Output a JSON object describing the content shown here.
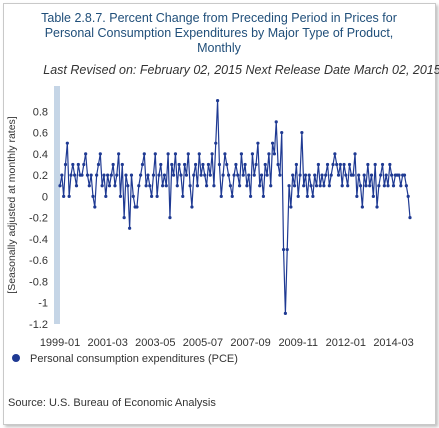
{
  "chart_data": {
    "type": "line",
    "title_lines": [
      "Table 2.8.7. Percent Change from Preceding Period in Prices for",
      "Personal Consumption Expenditures by Major Type of Product,",
      "Monthly"
    ],
    "subtitle": "Last Revised on: February 02, 2015   Next Release Date March 02, 2015",
    "ylabel": "[Seasonally adjusted at monthly rates]",
    "ylim": [
      -1.2,
      1.0
    ],
    "yticks": [
      0.8,
      0.6,
      0.4,
      0.2,
      0,
      -0.2,
      -0.4,
      -0.6,
      -0.8,
      -1,
      -1.2
    ],
    "ytick_labels": [
      "0.8",
      "0.6",
      "0.4",
      "0.2",
      "0",
      "-0.2",
      "-0.4",
      "-0.6",
      "-0.8",
      "-1",
      "-1.2"
    ],
    "x_start": "1999-01",
    "x_end": "2014-12",
    "xtick_labels": [
      "1999-01",
      "2001-03",
      "2003-05",
      "2005-07",
      "2007-09",
      "2009-11",
      "2012-01",
      "2014-03"
    ],
    "xtick_month_index": [
      0,
      26,
      52,
      78,
      104,
      130,
      156,
      182
    ],
    "grid": false,
    "legend_position": "bottom-left",
    "series": [
      {
        "name": "Personal consumption expenditures (PCE)",
        "color": "#1f3a93",
        "values": [
          0.1,
          0.2,
          0.0,
          0.3,
          0.5,
          0.0,
          0.2,
          0.3,
          0.2,
          0.1,
          0.3,
          0.2,
          0.2,
          0.3,
          0.4,
          0.2,
          0.1,
          0.2,
          0.0,
          -0.1,
          0.2,
          0.3,
          0.4,
          0.1,
          0.2,
          0.0,
          0.2,
          0.1,
          0.2,
          0.3,
          0.1,
          0.2,
          0.4,
          0.0,
          0.3,
          -0.2,
          0.2,
          0.1,
          -0.3,
          0.2,
          0.0,
          -0.1,
          -0.1,
          0.1,
          0.2,
          0.3,
          0.4,
          0.1,
          0.2,
          0.1,
          0.0,
          0.2,
          0.4,
          0.0,
          0.2,
          0.3,
          0.1,
          0.2,
          0.1,
          0.4,
          -0.2,
          0.3,
          0.2,
          0.4,
          0.1,
          0.3,
          0.2,
          0.0,
          0.3,
          0.2,
          0.4,
          0.1,
          -0.1,
          0.2,
          0.3,
          0.1,
          0.4,
          0.2,
          0.3,
          0.2,
          0.1,
          0.3,
          0.2,
          0.4,
          0.1,
          0.5,
          0.9,
          0.3,
          0.0,
          0.2,
          0.4,
          0.3,
          0.2,
          0.1,
          0.0,
          0.2,
          0.3,
          0.2,
          0.1,
          0.4,
          0.2,
          0.3,
          0.1,
          0.2,
          0.0,
          0.4,
          0.2,
          0.3,
          0.5,
          0.1,
          0.2,
          0.0,
          0.3,
          0.2,
          0.4,
          0.1,
          0.5,
          0.4,
          0.7,
          0.3,
          0.2,
          0.6,
          -0.5,
          -1.1,
          -0.5,
          0.1,
          -0.1,
          0.2,
          0.1,
          0.3,
          0.0,
          0.2,
          0.6,
          0.1,
          0.2,
          0.0,
          0.2,
          0.1,
          0.0,
          0.2,
          0.1,
          0.3,
          0.1,
          0.2,
          0.1,
          0.2,
          0.3,
          0.1,
          0.2,
          0.3,
          0.4,
          0.3,
          0.2,
          0.3,
          0.1,
          0.3,
          0.2,
          0.1,
          0.3,
          0.2,
          0.2,
          0.4,
          0.0,
          0.2,
          0.1,
          -0.1,
          0.2,
          0.1,
          0.3,
          0.1,
          0.2,
          0.0,
          0.3,
          -0.1,
          0.1,
          0.2,
          0.3,
          0.1,
          0.2,
          0.1,
          0.3,
          0.2,
          0.1,
          0.2,
          0.2,
          0.2,
          0.1,
          0.2,
          0.2,
          0.1,
          0.0,
          -0.2
        ]
      }
    ]
  },
  "source": "Source: U.S. Bureau of Economic Analysis"
}
